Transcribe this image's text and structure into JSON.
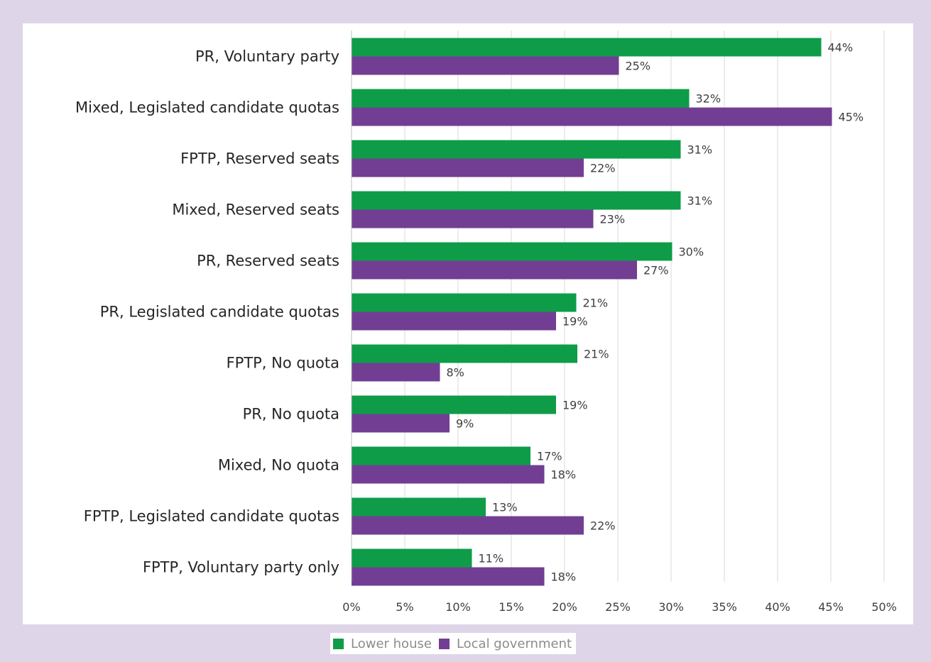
{
  "chart_data": {
    "type": "bar",
    "orientation": "horizontal",
    "categories": [
      "PR, Voluntary party",
      "Mixed, Legislated candidate quotas",
      "FPTP, Reserved seats",
      "Mixed, Reserved seats",
      "PR, Reserved seats",
      "PR, Legislated candidate quotas",
      "FPTP, No quota",
      "PR, No quota",
      "Mixed, No quota",
      "FPTP, Legislated candidate quotas",
      "FPTP, Voluntary party only"
    ],
    "series": [
      {
        "name": "Lower house",
        "color": "#0e9c48",
        "values": [
          44.1,
          31.7,
          30.9,
          30.9,
          30.1,
          21.1,
          21.2,
          19.2,
          16.8,
          12.6,
          11.3
        ],
        "labels": [
          "44%",
          "32%",
          "31%",
          "31%",
          "30%",
          "21%",
          "21%",
          "19%",
          "17%",
          "13%",
          "11%"
        ]
      },
      {
        "name": "Local government",
        "color": "#723e93",
        "values": [
          25.1,
          45.1,
          21.8,
          22.7,
          26.8,
          19.2,
          8.3,
          9.2,
          18.1,
          21.8,
          18.1
        ],
        "labels": [
          "25%",
          "45%",
          "22%",
          "23%",
          "27%",
          "19%",
          "8%",
          "9%",
          "18%",
          "22%",
          "18%"
        ]
      }
    ],
    "xlim": [
      0,
      50
    ],
    "xticks": [
      "0%",
      "5%",
      "10%",
      "15%",
      "20%",
      "25%",
      "30%",
      "35%",
      "40%",
      "45%",
      "50%"
    ],
    "grid": true,
    "legend_position": "bottom"
  }
}
